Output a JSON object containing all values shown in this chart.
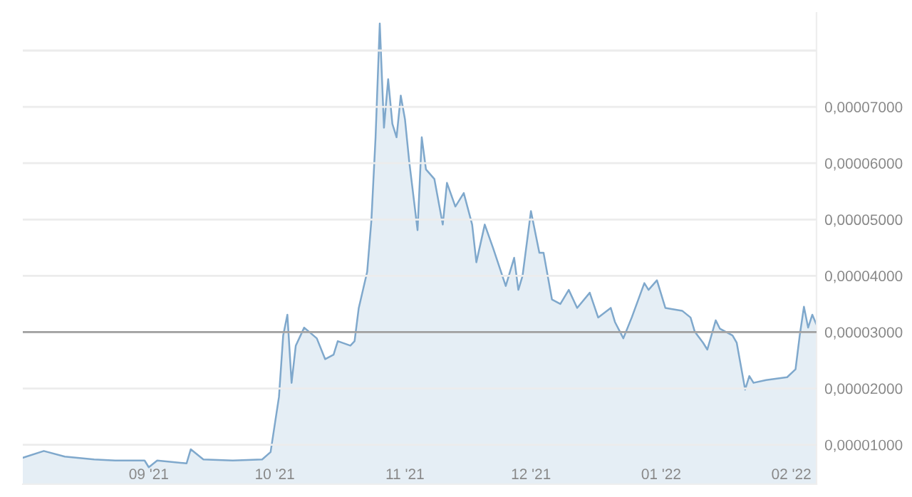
{
  "chart_data": {
    "type": "area",
    "x": [
      "2021-08-02",
      "2021-08-07",
      "2021-08-12",
      "2021-08-19",
      "2021-08-24",
      "2021-08-31",
      "2021-09-01",
      "2021-09-03",
      "2021-09-10",
      "2021-09-11",
      "2021-09-14",
      "2021-09-21",
      "2021-09-28",
      "2021-09-30",
      "2021-10-02",
      "2021-10-03",
      "2021-10-04",
      "2021-10-05",
      "2021-10-06",
      "2021-10-08",
      "2021-10-11",
      "2021-10-13",
      "2021-10-15",
      "2021-10-16",
      "2021-10-19",
      "2021-10-20",
      "2021-10-21",
      "2021-10-23",
      "2021-10-24",
      "2021-10-25",
      "2021-10-26",
      "2021-10-27",
      "2021-10-28",
      "2021-10-29",
      "2021-10-30",
      "2021-10-31",
      "2021-11-01",
      "2021-11-02",
      "2021-11-04",
      "2021-11-05",
      "2021-11-06",
      "2021-11-08",
      "2021-11-10",
      "2021-11-11",
      "2021-11-13",
      "2021-11-15",
      "2021-11-17",
      "2021-11-18",
      "2021-11-20",
      "2021-11-22",
      "2021-11-25",
      "2021-11-27",
      "2021-11-28",
      "2021-11-29",
      "2021-12-01",
      "2021-12-03",
      "2021-12-04",
      "2021-12-06",
      "2021-12-08",
      "2021-12-10",
      "2021-12-12",
      "2021-12-15",
      "2021-12-17",
      "2021-12-20",
      "2021-12-21",
      "2021-12-23",
      "2021-12-25",
      "2021-12-28",
      "2021-12-29",
      "2021-12-31",
      "2022-01-02",
      "2022-01-06",
      "2022-01-08",
      "2022-01-09",
      "2022-01-11",
      "2022-01-12",
      "2022-01-14",
      "2022-01-15",
      "2022-01-18",
      "2022-01-19",
      "2022-01-21",
      "2022-01-22",
      "2022-01-23",
      "2022-01-26",
      "2022-01-31",
      "2022-02-02",
      "2022-02-03",
      "2022-02-04",
      "2022-02-05",
      "2022-02-06",
      "2022-02-07"
    ],
    "series": [
      {
        "color": "#7fa8cc",
        "values": [
          7.7e-06,
          8.9e-06,
          7.9e-06,
          7.4e-06,
          7.2e-06,
          7.2e-06,
          6e-06,
          7.2e-06,
          6.7e-06,
          9.2e-06,
          7.4e-06,
          7.2e-06,
          7.4e-06,
          8.7e-06,
          1.85e-05,
          2.94e-05,
          3.31e-05,
          2.1e-05,
          2.76e-05,
          3.08e-05,
          2.89e-05,
          2.52e-05,
          2.6e-05,
          2.84e-05,
          2.76e-05,
          2.84e-05,
          3.43e-05,
          4.07e-05,
          4.98e-05,
          6.46e-05,
          8.48e-05,
          6.63e-05,
          7.49e-05,
          6.7e-05,
          6.46e-05,
          7.2e-05,
          6.78e-05,
          6.04e-05,
          4.81e-05,
          6.46e-05,
          5.89e-05,
          5.72e-05,
          4.91e-05,
          5.65e-05,
          5.23e-05,
          5.47e-05,
          4.91e-05,
          4.24e-05,
          4.91e-05,
          4.49e-05,
          3.82e-05,
          4.32e-05,
          3.75e-05,
          4e-05,
          5.15e-05,
          4.41e-05,
          4.41e-05,
          3.58e-05,
          3.5e-05,
          3.75e-05,
          3.43e-05,
          3.7e-05,
          3.26e-05,
          3.43e-05,
          3.18e-05,
          2.89e-05,
          3.26e-05,
          3.87e-05,
          3.75e-05,
          3.92e-05,
          3.43e-05,
          3.38e-05,
          3.26e-05,
          3.01e-05,
          2.81e-05,
          2.69e-05,
          3.21e-05,
          3.06e-05,
          2.94e-05,
          2.81e-05,
          1.98e-05,
          2.22e-05,
          2.1e-05,
          2.15e-05,
          2.2e-05,
          2.34e-05,
          2.94e-05,
          3.45e-05,
          3.08e-05,
          3.31e-05,
          3.13e-05
        ]
      }
    ],
    "xlim": [
      "2021-08-02",
      "2022-02-07"
    ],
    "xticks": [
      {
        "value": "2021-09-01",
        "label": "09 '21"
      },
      {
        "value": "2021-10-01",
        "label": "10 '21"
      },
      {
        "value": "2021-11-01",
        "label": "11 '21"
      },
      {
        "value": "2021-12-01",
        "label": "12 '21"
      },
      {
        "value": "2022-01-01",
        "label": "01 '22"
      },
      {
        "value": "2022-02-01",
        "label": "02 '22"
      }
    ],
    "ylim": [
      3e-06,
      8.67e-05
    ],
    "yticks": [
      {
        "value": 1e-05,
        "label": "0,00001000"
      },
      {
        "value": 2e-05,
        "label": "0,00002000"
      },
      {
        "value": 3e-05,
        "label": "0,00003000"
      },
      {
        "value": 4e-05,
        "label": "0,00004000"
      },
      {
        "value": 5e-05,
        "label": "0,00005000"
      },
      {
        "value": 6e-05,
        "label": "0,00006000"
      },
      {
        "value": 7e-05,
        "label": "0,00007000"
      },
      {
        "value": 8e-05,
        "label": null
      }
    ],
    "ref_lines": [
      {
        "axis": "y",
        "value": 3e-05,
        "label": null,
        "color": "#a0a0a0"
      }
    ],
    "grid": "y"
  }
}
